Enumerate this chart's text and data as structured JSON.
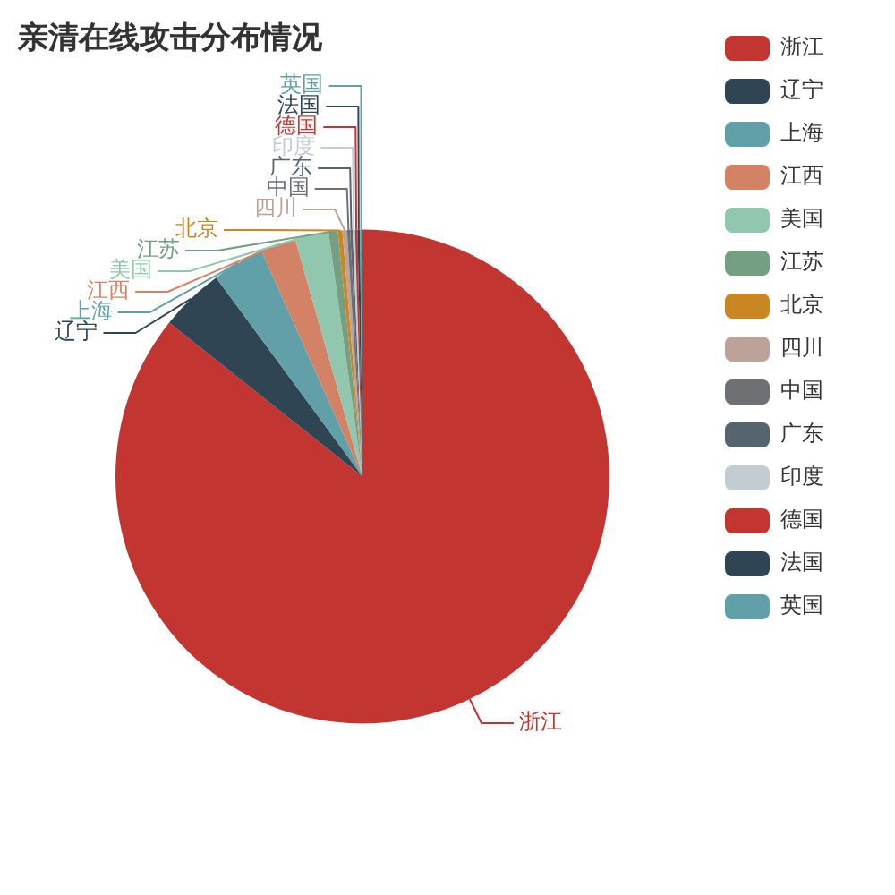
{
  "chart_data": {
    "type": "pie",
    "title": "亲清在线攻击分布情况",
    "categories": [
      "浙江",
      "辽宁",
      "上海",
      "江西",
      "美国",
      "江苏",
      "北京",
      "四川",
      "中国",
      "广东",
      "印度",
      "德国",
      "法国",
      "英国"
    ],
    "values": [
      85.7,
      4.2,
      3.4,
      2.3,
      2.2,
      0.6,
      0.3,
      0.3,
      0.2,
      0.16,
      0.16,
      0.16,
      0.16,
      0.16
    ],
    "colors": [
      "#c23531",
      "#2f4554",
      "#61a0a8",
      "#d48265",
      "#91c7ae",
      "#749f83",
      "#ca8622",
      "#bda29a",
      "#6e7074",
      "#546570",
      "#c4ccd3",
      "#c23531",
      "#2f4554",
      "#61a0a8"
    ],
    "legend": "right"
  }
}
